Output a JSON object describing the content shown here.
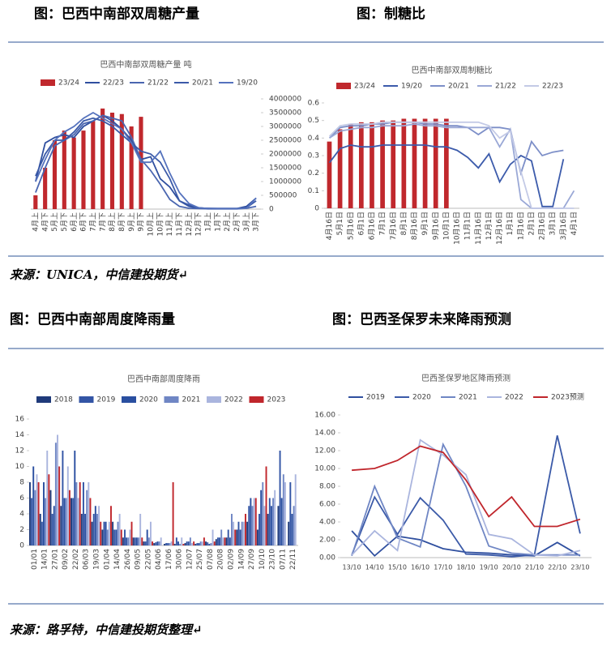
{
  "headings": [
    "图：巴西中南部双周糖产量",
    "图：制糖比",
    "图：巴西中南部周度降雨量",
    "图：巴西圣保罗未来降雨预测"
  ],
  "sources": [
    "来源：UNICA，中信建投期货↵",
    "来源：路孚特，中信建投期货整理↵"
  ],
  "chart_data": [
    {
      "type": "combo",
      "title": "巴西中南部双周糖产量 吨",
      "yaxis": "right",
      "categories": [
        "4月上",
        "4月下",
        "5月上",
        "5月下",
        "6月上",
        "6月下",
        "7月上",
        "7月下",
        "8月上",
        "8月下",
        "9月上",
        "9月下",
        "10月上",
        "10月下",
        "11月上",
        "11月下",
        "12月上",
        "12月下",
        "1月上",
        "1月下",
        "2月上",
        "2月下",
        "3月上",
        "3月下"
      ],
      "ylim": [
        0,
        4000000
      ],
      "yticks": [
        0,
        500000,
        1000000,
        1500000,
        2000000,
        2500000,
        3000000,
        3500000,
        4000000
      ],
      "series": [
        {
          "name": "23/24",
          "type": "bar",
          "color": "#c0282d",
          "values": [
            500000,
            1500000,
            2500000,
            2850000,
            2600000,
            2850000,
            3200000,
            3650000,
            3500000,
            3450000,
            3000000,
            3350000,
            null,
            null,
            null,
            null,
            null,
            null,
            null,
            null,
            null,
            null,
            null,
            null
          ]
        },
        {
          "name": "22/23",
          "type": "line",
          "color": "#2f4f9f",
          "values": [
            1000000,
            2400000,
            2600000,
            2700000,
            2600000,
            3000000,
            3200000,
            3400000,
            3200000,
            2900000,
            2500000,
            1800000,
            1900000,
            1100000,
            800000,
            300000,
            100000,
            30000,
            30000,
            20000,
            20000,
            20000,
            100000,
            400000
          ]
        },
        {
          "name": "21/22",
          "type": "line",
          "color": "#4a66b0",
          "values": [
            600000,
            1500000,
            2300000,
            2500000,
            2700000,
            3100000,
            3200000,
            3400000,
            3300000,
            3200000,
            2600000,
            1800000,
            1400000,
            900000,
            350000,
            100000,
            30000,
            20000,
            10000,
            10000,
            10000,
            10000,
            30000,
            100000
          ]
        },
        {
          "name": "20/21",
          "type": "line",
          "color": "#3b5aa8",
          "values": [
            1200000,
            2000000,
            2500000,
            2500000,
            2800000,
            3200000,
            3300000,
            3200000,
            3000000,
            2700000,
            2400000,
            2100000,
            2000000,
            1700000,
            1100000,
            300000,
            150000,
            50000,
            20000,
            20000,
            20000,
            20000,
            50000,
            300000
          ]
        },
        {
          "name": "19/20",
          "type": "line",
          "color": "#5572bd",
          "values": [
            1000000,
            1800000,
            2500000,
            2800000,
            3000000,
            3300000,
            3500000,
            3300000,
            3100000,
            2900000,
            2400000,
            1700000,
            1700000,
            2100000,
            1300000,
            600000,
            200000,
            50000,
            20000,
            20000,
            20000,
            20000,
            30000,
            400000
          ]
        }
      ]
    },
    {
      "type": "combo",
      "title": "巴西中南部双周制糖比",
      "yaxis": "left",
      "categories": [
        "4月16日",
        "5月1日",
        "5月16日",
        "6月1日",
        "6月16日",
        "7月1日",
        "7月16日",
        "8月1日",
        "8月16日",
        "9月1日",
        "9月16日",
        "10月1日",
        "10月16日",
        "11月1日",
        "11月16日",
        "12月1日",
        "12月16日",
        "1月1日",
        "1月16日",
        "2月1日",
        "2月16日",
        "3月1日",
        "3月16日",
        "4月1日"
      ],
      "ylim": [
        0,
        0.6
      ],
      "yticks": [
        0,
        0.1,
        0.2,
        0.3,
        0.4,
        0.5,
        0.6
      ],
      "series": [
        {
          "name": "23/24",
          "type": "bar",
          "color": "#c0282d",
          "values": [
            0.38,
            0.45,
            0.48,
            0.49,
            0.49,
            0.5,
            0.5,
            0.51,
            0.51,
            0.51,
            0.51,
            0.51,
            null,
            null,
            null,
            null,
            null,
            null,
            null,
            null,
            null,
            null,
            null,
            null
          ]
        },
        {
          "name": "19/20",
          "type": "line",
          "color": "#3c5bab",
          "values": [
            0.26,
            0.34,
            0.36,
            0.35,
            0.35,
            0.36,
            0.36,
            0.36,
            0.36,
            0.36,
            0.35,
            0.35,
            0.33,
            0.29,
            0.23,
            0.31,
            0.15,
            0.25,
            0.3,
            0.27,
            0.01,
            0.01,
            0.28,
            null
          ]
        },
        {
          "name": "20/21",
          "type": "line",
          "color": "#7d8fc8",
          "values": [
            0.4,
            0.46,
            0.47,
            0.47,
            0.48,
            0.48,
            0.49,
            0.49,
            0.49,
            0.48,
            0.48,
            0.47,
            0.47,
            0.46,
            0.42,
            0.46,
            0.46,
            0.45,
            0.2,
            0.38,
            0.3,
            0.32,
            0.33,
            null
          ]
        },
        {
          "name": "21/22",
          "type": "line",
          "color": "#9aa8d6",
          "values": [
            0.4,
            0.44,
            0.45,
            0.46,
            0.46,
            0.47,
            0.47,
            0.47,
            0.48,
            0.47,
            0.47,
            0.46,
            0.46,
            0.46,
            0.46,
            0.46,
            0.35,
            0.45,
            0.05,
            0,
            0,
            0,
            0,
            0.1
          ]
        },
        {
          "name": "22/23",
          "type": "line",
          "color": "#c3cae6",
          "values": [
            0.41,
            0.47,
            0.48,
            0.48,
            0.48,
            0.49,
            0.49,
            0.49,
            0.49,
            0.49,
            0.49,
            0.49,
            0.49,
            0.49,
            0.49,
            0.47,
            0.4,
            0.44,
            0.21,
            0,
            0,
            0,
            0,
            0
          ]
        }
      ]
    },
    {
      "type": "bar",
      "title": "巴西中南部周度降雨",
      "yaxis": "left",
      "categories": [
        "01/01",
        "14/01",
        "27/01",
        "09/02",
        "22/02",
        "06/03",
        "19/03",
        "01/04",
        "14/04",
        "26/04",
        "09/05",
        "22/05",
        "04/06",
        "17/06",
        "30/06",
        "12/07",
        "25/07",
        "07/08",
        "20/08",
        "02/09",
        "14/09",
        "27/09",
        "10/10",
        "23/10",
        "07/11",
        "22/11"
      ],
      "ylim": [
        0,
        16
      ],
      "yticks": [
        0,
        2,
        4,
        6,
        8,
        10,
        12,
        14,
        16
      ],
      "series": [
        {
          "name": "2018",
          "color": "#1f3a7a",
          "values": [
            8,
            4,
            7,
            5,
            6,
            4,
            3,
            2,
            3,
            1,
            1,
            0.5,
            0.3,
            0.2,
            0.2,
            0.3,
            0.2,
            0.5,
            0.8,
            1,
            2,
            3,
            2,
            4,
            5,
            3
          ]
        },
        {
          "name": "2019",
          "color": "#3355a5",
          "values": [
            6,
            3,
            4,
            12,
            6,
            8,
            4,
            3,
            2,
            2,
            1,
            0.5,
            0.4,
            0.3,
            1,
            0.5,
            0.3,
            0.4,
            1,
            2,
            3,
            5,
            4,
            6,
            12,
            8
          ]
        },
        {
          "name": "2020",
          "color": "#2a4fa0",
          "values": [
            10,
            8,
            5,
            6,
            12,
            4,
            5,
            3,
            2,
            1,
            1,
            2,
            0.5,
            0.3,
            0.5,
            0.5,
            0.3,
            0.2,
            1,
            1,
            2,
            6,
            7,
            5,
            6,
            4
          ]
        },
        {
          "name": "2021",
          "color": "#6f86c4",
          "values": [
            7,
            6,
            13,
            6,
            8,
            7,
            4,
            2,
            3,
            1,
            1,
            1,
            0.5,
            0.3,
            0.2,
            1,
            0.5,
            0.3,
            2,
            4,
            3,
            5,
            8,
            6,
            9,
            5
          ]
        },
        {
          "name": "2022",
          "color": "#aab5de",
          "values": [
            9,
            12,
            14,
            10,
            6,
            8,
            5,
            3,
            4,
            2,
            4,
            3,
            1,
            0.5,
            1,
            0.3,
            0.5,
            2,
            1,
            3,
            3,
            6,
            5,
            7,
            8,
            9
          ]
        },
        {
          "name": "2023",
          "color": "#c0262c",
          "values": [
            8,
            9,
            10,
            7,
            8,
            6,
            3,
            5,
            2,
            3,
            1,
            0.5,
            0,
            8,
            0.2,
            0.5,
            1,
            0.5,
            1,
            2,
            4,
            6,
            10,
            null,
            null,
            null
          ]
        }
      ]
    },
    {
      "type": "line",
      "title": "巴西圣保罗地区降雨预测",
      "yaxis": "left",
      "categories": [
        "13/10",
        "14/10",
        "15/10",
        "16/10",
        "17/10",
        "18/10",
        "19/10",
        "20/10",
        "21/10",
        "22/10",
        "23/10"
      ],
      "ylim": [
        0,
        16
      ],
      "yticks": [
        {
          "value": 0,
          "label": "0.00"
        },
        {
          "value": 2,
          "label": "2.00"
        },
        {
          "value": 4,
          "label": "4.00"
        },
        {
          "value": 6,
          "label": "6.00"
        },
        {
          "value": 8,
          "label": "8.00"
        },
        {
          "value": 10,
          "label": "10.00"
        },
        {
          "value": 12,
          "label": "12.00"
        },
        {
          "value": 14,
          "label": "14.00"
        },
        {
          "value": 16,
          "label": "16.00"
        }
      ],
      "series": [
        {
          "name": "2019",
          "color": "#2f4f9f",
          "values": [
            3,
            0.2,
            2.4,
            2,
            1,
            0.6,
            0.5,
            0.3,
            0.2,
            1.7,
            0.2
          ]
        },
        {
          "name": "2020",
          "color": "#3b5aa8",
          "values": [
            0.3,
            6.8,
            2.6,
            6.7,
            4.2,
            0.4,
            0.3,
            0.1,
            0.3,
            13.7,
            2.7
          ]
        },
        {
          "name": "2021",
          "color": "#6f86c4",
          "values": [
            0.2,
            8,
            2.2,
            1.2,
            12.7,
            8,
            1.3,
            0.5,
            0.3,
            0.3,
            0.3
          ]
        },
        {
          "name": "2022",
          "color": "#aab5de",
          "values": [
            0.3,
            3,
            0.8,
            13.2,
            11.5,
            9.3,
            2.6,
            2.1,
            0.3,
            0.2,
            0.8
          ]
        },
        {
          "name": "2023预测",
          "color": "#c0262c",
          "values": [
            9.8,
            10,
            10.9,
            12.5,
            11.8,
            8.7,
            4.6,
            6.8,
            3.5,
            3.5,
            4.3
          ]
        }
      ]
    }
  ]
}
